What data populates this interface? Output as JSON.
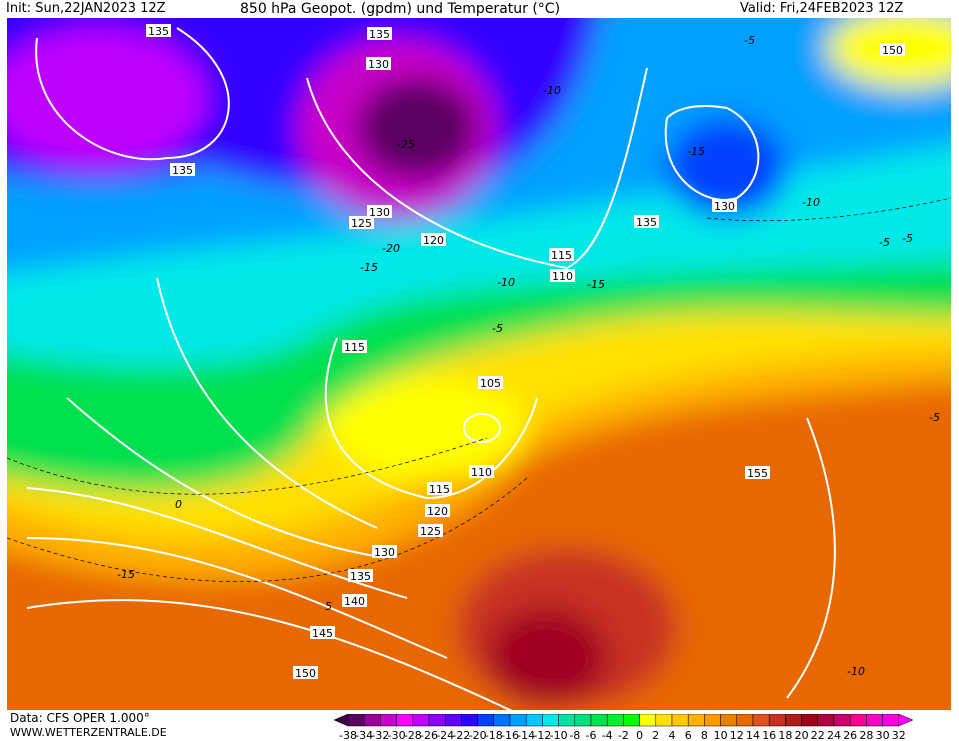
{
  "header": {
    "init": "Init: Sun,22JAN2023 12Z",
    "title": "850 hPa Geopot. (gpdm) und Temperatur (°C)",
    "valid": "Valid: Fri,24FEB2023 12Z"
  },
  "footer": {
    "data_source": "Data: CFS OPER 1.000°",
    "website": "WWW.WETTERZENTRALE.DE"
  },
  "colorbar": {
    "ticks": [
      "-38",
      "-34",
      "-32",
      "-30",
      "-28",
      "-26",
      "-24",
      "-22",
      "-20",
      "-18",
      "-16",
      "-14",
      "-12",
      "-10",
      "-8",
      "-6",
      "-4",
      "-2",
      "0",
      "2",
      "4",
      "6",
      "8",
      "10",
      "12",
      "14",
      "16",
      "18",
      "20",
      "22",
      "24",
      "26",
      "28",
      "30",
      "32"
    ],
    "colors": [
      "#5a0060",
      "#9a009a",
      "#c800c8",
      "#ff00ff",
      "#c000ff",
      "#9000ff",
      "#6000ff",
      "#3000ff",
      "#0040ff",
      "#0070ff",
      "#00a0ff",
      "#00c8ff",
      "#00e8e8",
      "#00e0a0",
      "#00e080",
      "#00e050",
      "#00f030",
      "#00ff00",
      "#ffff00",
      "#ffe000",
      "#ffc800",
      "#ffb000",
      "#ff9800",
      "#e88000",
      "#e86800",
      "#e05020",
      "#c83020",
      "#b01c1c",
      "#a00020",
      "#b00040",
      "#c80070",
      "#ff0090",
      "#ff00c0",
      "#ff00e0"
    ],
    "low_arrow_color": "#3a0040",
    "high_arrow_color": "#ff00ff"
  },
  "map": {
    "geopotential_labels": [
      "135",
      "135",
      "130",
      "150",
      "135",
      "130",
      "135",
      "130",
      "125",
      "120",
      "115",
      "110",
      "115",
      "105",
      "110",
      "115",
      "120",
      "125",
      "130",
      "135",
      "140",
      "145",
      "150",
      "155"
    ],
    "temperature_labels": [
      "-5",
      "-10",
      "-15",
      "-20",
      "-15",
      "-10",
      "-5",
      "-5",
      "-10",
      "-5",
      "0",
      "5",
      "-5",
      "-10",
      "-15",
      "-25",
      "-15"
    ]
  }
}
